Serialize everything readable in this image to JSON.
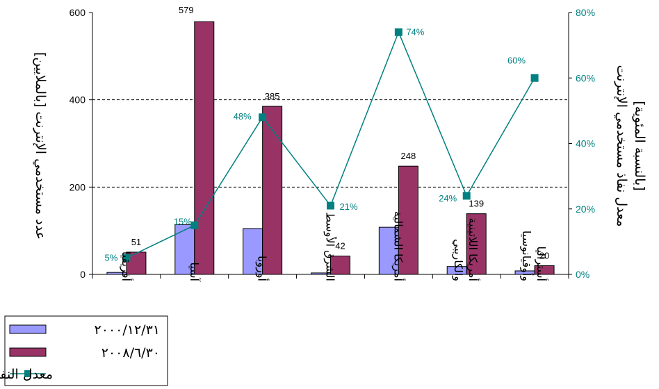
{
  "chart_data": {
    "type": "bar",
    "categories": [
      "أفريقيا",
      "آسيا",
      "أوروبا",
      "الشرق الأوسط",
      "أمريكا الشمالية",
      "أمريكا اللاتينية والكاريبي",
      "أستراليا وأوقيانوسيا"
    ],
    "series": [
      {
        "name": "٢٠٠٠/١٢/٣١",
        "type": "bar",
        "values": [
          4.5,
          114,
          105,
          3.3,
          108,
          18,
          8
        ]
      },
      {
        "name": "٢٠٠٨/٦/٣٠",
        "type": "bar",
        "values": [
          51,
          579,
          385,
          42,
          248,
          139,
          20
        ],
        "labels": [
          "51",
          "579",
          "385",
          "42",
          "248",
          "139",
          "20"
        ]
      },
      {
        "name": "معدل النفاذ",
        "type": "line",
        "axis": "right",
        "values": [
          5,
          15,
          48,
          21,
          74,
          24,
          60
        ],
        "labels": [
          "5%",
          "15%",
          "48%",
          "21%",
          "74%",
          "24%",
          "60%"
        ]
      }
    ],
    "ylabel": "عدد مستخدمي الإنترنت [بالملايين]",
    "y2label": "معدل نفاذ مستخدمي الإنترنت [بالنسبة المئوية]",
    "ylim": [
      0,
      600
    ],
    "y2lim": [
      0,
      80
    ],
    "yticks": [
      "0",
      "200",
      "400",
      "600"
    ],
    "y2ticks": [
      "0%",
      "20%",
      "40%",
      "60%",
      "80%"
    ],
    "grid": "dashed horizontal",
    "legend": "bottom-left",
    "colors": {
      "series1": "#9999ff",
      "series2": "#993366",
      "line": "#008080"
    }
  }
}
